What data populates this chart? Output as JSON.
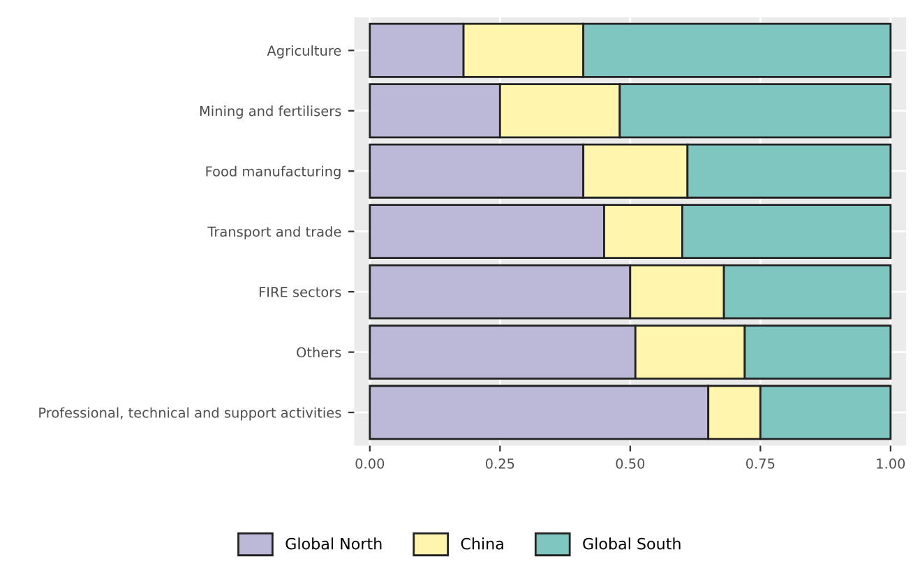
{
  "chart_data": {
    "type": "bar",
    "orientation": "horizontal",
    "stacked": true,
    "categories": [
      "Agriculture",
      "Mining and fertilisers",
      "Food manufacturing",
      "Transport and trade",
      "FIRE sectors",
      "Others",
      "Professional, technical and support activities"
    ],
    "series": [
      {
        "name": "Global North",
        "color": "#bcb9d8",
        "values": [
          0.18,
          0.25,
          0.41,
          0.45,
          0.5,
          0.51,
          0.65
        ]
      },
      {
        "name": "China",
        "color": "#fff5ad",
        "values": [
          0.23,
          0.23,
          0.2,
          0.15,
          0.18,
          0.21,
          0.1
        ]
      },
      {
        "name": "Global South",
        "color": "#7fc6c1",
        "values": [
          0.59,
          0.52,
          0.39,
          0.4,
          0.32,
          0.28,
          0.25
        ]
      }
    ],
    "xlim": [
      -0.03,
      1.03
    ],
    "xticks": [
      {
        "value": 0,
        "label": "0.00"
      },
      {
        "value": 0.25,
        "label": "0.25"
      },
      {
        "value": 0.5,
        "label": "0.50"
      },
      {
        "value": 0.75,
        "label": "0.75"
      },
      {
        "value": 1,
        "label": "1.00"
      }
    ],
    "grid": true,
    "legend": "bottom"
  }
}
